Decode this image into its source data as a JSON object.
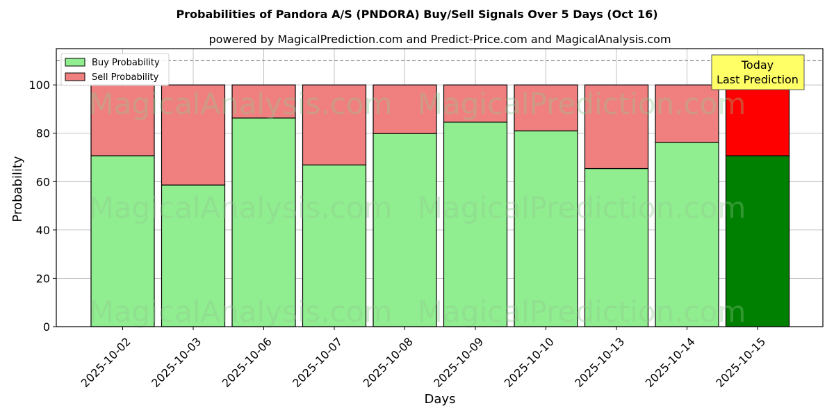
{
  "chart_data": {
    "type": "bar",
    "stacked": true,
    "title": "Probabilities of Pandora A/S (PNDORA) Buy/Sell Signals Over 5 Days (Oct 16)",
    "subtitle": "powered by MagicalPrediction.com and Predict-Price.com and MagicalAnalysis.com",
    "xlabel": "Days",
    "ylabel": "Probability",
    "ylim": [
      0,
      115
    ],
    "yticks": [
      0,
      20,
      40,
      60,
      80,
      100
    ],
    "reference_line": 110,
    "grid": true,
    "legend_position": "top-left",
    "categories": [
      "2025-10-02",
      "2025-10-03",
      "2025-10-06",
      "2025-10-07",
      "2025-10-08",
      "2025-10-09",
      "2025-10-10",
      "2025-10-13",
      "2025-10-14",
      "2025-10-15"
    ],
    "series": [
      {
        "name": "Buy Probability",
        "color": "#90ee90",
        "highlight_color": "#008000",
        "values": [
          70.7,
          58.6,
          86.3,
          66.9,
          79.9,
          84.6,
          81.0,
          65.4,
          76.2,
          70.7
        ]
      },
      {
        "name": "Sell Probability",
        "color": "#f08080",
        "highlight_color": "#ff0000",
        "values": [
          29.3,
          41.4,
          13.7,
          33.1,
          20.1,
          15.4,
          19.0,
          34.6,
          23.8,
          29.3
        ]
      }
    ],
    "highlight_index": 9,
    "annotation": {
      "lines": [
        "Today",
        "Last Prediction"
      ],
      "color": "#ffff66"
    },
    "watermarks": [
      "MagicalAnalysis.com",
      "MagicalPrediction.com"
    ]
  }
}
